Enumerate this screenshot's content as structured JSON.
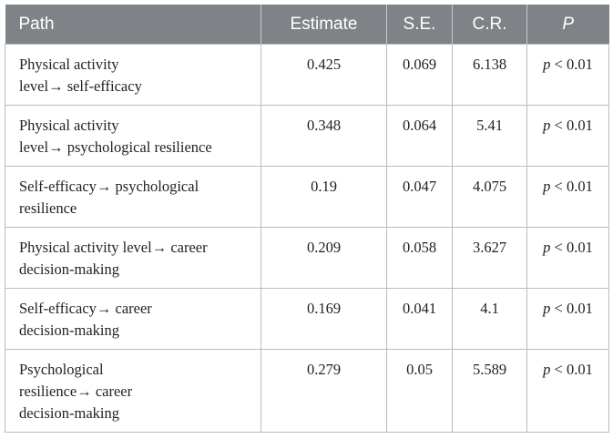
{
  "table": {
    "headers": [
      "Path",
      "Estimate",
      "S.E.",
      "C.R.",
      "P"
    ],
    "rows": [
      {
        "path_lines": [
          "Physical activity",
          "level→ self-efficacy"
        ],
        "estimate": "0.425",
        "se": "0.069",
        "cr": "6.138",
        "p_var": "p",
        "p_rest": " < 0.01"
      },
      {
        "path_lines": [
          "Physical activity",
          "level→ psychological resilience"
        ],
        "estimate": "0.348",
        "se": "0.064",
        "cr": "5.41",
        "p_var": "p",
        "p_rest": " < 0.01"
      },
      {
        "path_lines": [
          "Self-efficacy→ psychological",
          "resilience"
        ],
        "estimate": "0.19",
        "se": "0.047",
        "cr": "4.075",
        "p_var": "p",
        "p_rest": " < 0.01"
      },
      {
        "path_lines": [
          "Physical activity level→ career",
          "decision-making"
        ],
        "estimate": "0.209",
        "se": "0.058",
        "cr": "3.627",
        "p_var": "p",
        "p_rest": " < 0.01"
      },
      {
        "path_lines": [
          "Self-efficacy→ career",
          "decision-making"
        ],
        "estimate": "0.169",
        "se": "0.041",
        "cr": "4.1",
        "p_var": "p",
        "p_rest": " < 0.01"
      },
      {
        "path_lines": [
          "Psychological",
          "resilience→ career",
          "decision-making"
        ],
        "estimate": "0.279",
        "se": "0.05",
        "cr": "5.589",
        "p_var": "p",
        "p_rest": " < 0.01"
      }
    ]
  }
}
